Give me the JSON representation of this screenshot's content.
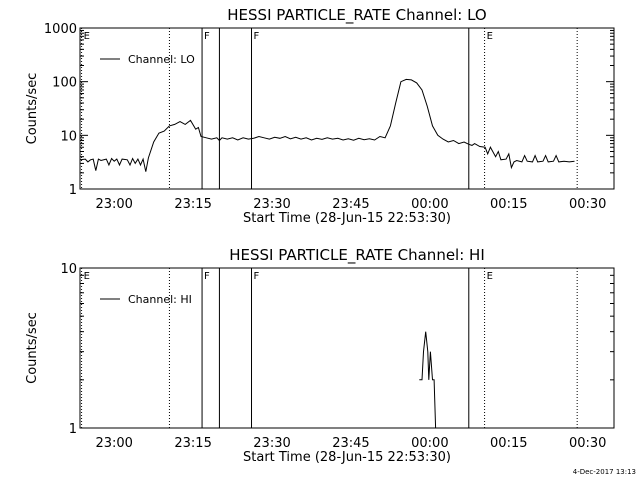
{
  "footer_stamp": "4-Dec-2017 13:13",
  "chart_data": [
    {
      "type": "line",
      "title": "HESSI PARTICLE_RATE Channel: LO",
      "xlabel": "Start Time (28-Jun-15 22:53:30)",
      "ylabel": "Counts/sec",
      "y_scale": "log",
      "x_unit": "minutes after 22:53:30",
      "xlim": [
        0,
        101.5
      ],
      "ylim": [
        1,
        1000
      ],
      "x_ticks": [
        {
          "x": 6.5,
          "label": "23:00"
        },
        {
          "x": 21.5,
          "label": "23:15"
        },
        {
          "x": 36.5,
          "label": "23:30"
        },
        {
          "x": 51.5,
          "label": "23:45"
        },
        {
          "x": 66.5,
          "label": "00:00"
        },
        {
          "x": 81.5,
          "label": "00:15"
        },
        {
          "x": 96.5,
          "label": "00:30"
        }
      ],
      "y_ticks": [
        {
          "y": 1,
          "label": "1"
        },
        {
          "y": 10,
          "label": "10"
        },
        {
          "y": 100,
          "label": "100"
        },
        {
          "y": 1000,
          "label": "1000"
        }
      ],
      "legend": {
        "label": "Channel: LO",
        "position": "top-left"
      },
      "markers": [
        {
          "x": 0.3,
          "style": "dotted",
          "label": "E"
        },
        {
          "x": 17.0,
          "style": "dotted",
          "label": ""
        },
        {
          "x": 23.2,
          "style": "solid",
          "label": "F"
        },
        {
          "x": 26.5,
          "style": "solid",
          "label": ""
        },
        {
          "x": 32.6,
          "style": "solid",
          "label": "F"
        },
        {
          "x": 73.9,
          "style": "solid",
          "label": ""
        },
        {
          "x": 76.9,
          "style": "dotted",
          "label": "E"
        },
        {
          "x": 94.5,
          "style": "dotted",
          "label": ""
        }
      ],
      "series": [
        {
          "name": "Channel: LO",
          "points": [
            [
              0,
              3.5
            ],
            [
              1,
              3.6
            ],
            [
              1.5,
              3.2
            ],
            [
              2,
              3.5
            ],
            [
              2.5,
              3.6
            ],
            [
              3,
              2.2
            ],
            [
              3.5,
              3.6
            ],
            [
              4,
              3.4
            ],
            [
              5,
              3.6
            ],
            [
              5.5,
              2.8
            ],
            [
              6,
              3.7
            ],
            [
              6.5,
              3.3
            ],
            [
              7,
              3.6
            ],
            [
              7.5,
              2.8
            ],
            [
              8,
              3.6
            ],
            [
              9,
              3.5
            ],
            [
              9.5,
              2.8
            ],
            [
              10,
              3.7
            ],
            [
              10.5,
              3.0
            ],
            [
              11,
              3.6
            ],
            [
              11.5,
              2.8
            ],
            [
              12,
              3.6
            ],
            [
              12.5,
              2.1
            ],
            [
              13,
              3.8
            ],
            [
              14,
              7.5
            ],
            [
              15,
              11
            ],
            [
              16,
              12
            ],
            [
              17,
              15
            ],
            [
              18,
              16
            ],
            [
              19,
              18
            ],
            [
              20,
              16
            ],
            [
              21,
              19
            ],
            [
              22,
              13
            ],
            [
              22.5,
              14
            ],
            [
              23,
              9.5
            ],
            [
              24,
              9
            ],
            [
              25,
              8.5
            ],
            [
              26,
              9
            ],
            [
              26.5,
              8
            ],
            [
              27,
              9
            ],
            [
              28,
              8.5
            ],
            [
              29,
              9
            ],
            [
              30,
              8.2
            ],
            [
              31,
              9
            ],
            [
              32,
              8.5
            ],
            [
              33,
              8.8
            ],
            [
              34,
              9.5
            ],
            [
              35,
              9
            ],
            [
              36,
              8.5
            ],
            [
              37,
              9.2
            ],
            [
              38,
              8.8
            ],
            [
              39,
              9.5
            ],
            [
              40,
              8.6
            ],
            [
              41,
              9.2
            ],
            [
              42,
              8.5
            ],
            [
              43,
              9
            ],
            [
              44,
              8.2
            ],
            [
              45,
              8.8
            ],
            [
              46,
              8.4
            ],
            [
              47,
              9
            ],
            [
              48,
              8.5
            ],
            [
              49,
              8.8
            ],
            [
              50,
              8.2
            ],
            [
              51,
              8.6
            ],
            [
              52,
              8.1
            ],
            [
              53,
              8.8
            ],
            [
              54,
              8.3
            ],
            [
              55,
              8.6
            ],
            [
              56,
              8.2
            ],
            [
              57,
              9.5
            ],
            [
              58,
              9
            ],
            [
              59,
              15
            ],
            [
              60,
              40
            ],
            [
              61,
              100
            ],
            [
              62,
              110
            ],
            [
              63,
              108
            ],
            [
              64,
              95
            ],
            [
              65,
              70
            ],
            [
              66,
              35
            ],
            [
              67,
              15
            ],
            [
              68,
              10
            ],
            [
              69,
              8.5
            ],
            [
              70,
              7.5
            ],
            [
              71,
              8
            ],
            [
              72,
              7
            ],
            [
              73,
              7.5
            ],
            [
              73.9,
              6.8
            ],
            [
              74.5,
              6.5
            ],
            [
              75,
              7
            ],
            [
              76,
              6.2
            ],
            [
              77,
              6
            ],
            [
              77.5,
              4.5
            ],
            [
              78,
              6
            ],
            [
              79,
              4
            ],
            [
              79.5,
              5
            ],
            [
              80,
              3.5
            ],
            [
              81,
              3.6
            ],
            [
              81.5,
              4.5
            ],
            [
              82,
              2.5
            ],
            [
              82.5,
              3.2
            ],
            [
              83,
              3.4
            ],
            [
              84,
              3.2
            ],
            [
              84.5,
              4.2
            ],
            [
              85,
              3.3
            ],
            [
              86,
              3.2
            ],
            [
              86.5,
              4.2
            ],
            [
              87,
              3.2
            ],
            [
              88,
              3.3
            ],
            [
              88.5,
              4.2
            ],
            [
              89,
              3.2
            ],
            [
              90,
              3.3
            ],
            [
              90.5,
              4.2
            ],
            [
              91,
              3.2
            ],
            [
              92,
              3.3
            ],
            [
              93,
              3.2
            ],
            [
              94,
              3.3
            ]
          ]
        }
      ]
    },
    {
      "type": "line",
      "title": "HESSI PARTICLE_RATE Channel: HI",
      "xlabel": "Start Time (28-Jun-15 22:53:30)",
      "ylabel": "Counts/sec",
      "y_scale": "log",
      "x_unit": "minutes after 22:53:30",
      "xlim": [
        0,
        101.5
      ],
      "ylim": [
        1,
        10
      ],
      "x_ticks": [
        {
          "x": 6.5,
          "label": "23:00"
        },
        {
          "x": 21.5,
          "label": "23:15"
        },
        {
          "x": 36.5,
          "label": "23:30"
        },
        {
          "x": 51.5,
          "label": "23:45"
        },
        {
          "x": 66.5,
          "label": "00:00"
        },
        {
          "x": 81.5,
          "label": "00:15"
        },
        {
          "x": 96.5,
          "label": "00:30"
        }
      ],
      "y_ticks": [
        {
          "y": 1,
          "label": "1"
        },
        {
          "y": 10,
          "label": "10"
        }
      ],
      "legend": {
        "label": "Channel: HI",
        "position": "top-left"
      },
      "markers": [
        {
          "x": 0.3,
          "style": "dotted",
          "label": "E"
        },
        {
          "x": 17.0,
          "style": "dotted",
          "label": ""
        },
        {
          "x": 23.2,
          "style": "solid",
          "label": "F"
        },
        {
          "x": 26.5,
          "style": "solid",
          "label": ""
        },
        {
          "x": 32.6,
          "style": "solid",
          "label": "F"
        },
        {
          "x": 73.9,
          "style": "solid",
          "label": ""
        },
        {
          "x": 76.9,
          "style": "dotted",
          "label": "E"
        },
        {
          "x": 94.5,
          "style": "dotted",
          "label": ""
        }
      ],
      "series": [
        {
          "name": "Channel: HI",
          "points": [
            [
              64.5,
              2.0
            ],
            [
              65,
              2.0
            ],
            [
              65.3,
              3.0
            ],
            [
              65.7,
              4.0
            ],
            [
              66.1,
              3.0
            ],
            [
              66.3,
              2.0
            ],
            [
              66.6,
              3.0
            ],
            [
              67,
              2.0
            ],
            [
              67.3,
              2.0
            ],
            [
              67.6,
              1.0
            ]
          ]
        }
      ]
    }
  ]
}
